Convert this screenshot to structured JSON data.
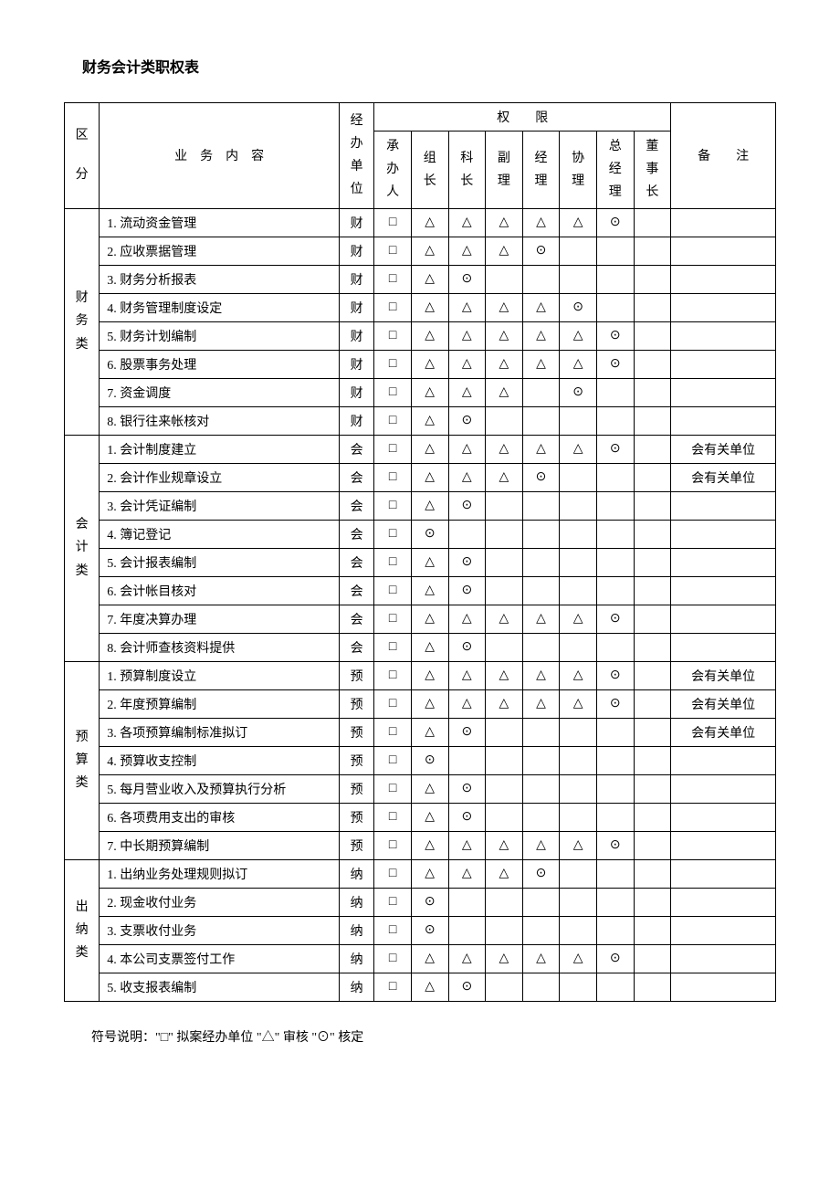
{
  "title": "财务会计类职权表",
  "symbols": {
    "draft": "□",
    "review": "△",
    "approve": "⊙"
  },
  "header": {
    "category": "区分",
    "task": "业　务　内　容",
    "unit": "经办单位",
    "authority": "权　　限",
    "remarks": "备　　注",
    "auth_cols": [
      "承办人",
      "组长",
      "科长",
      "副理",
      "经理",
      "协理",
      "总经理",
      "董事长"
    ]
  },
  "groups": [
    {
      "name": "财务类",
      "rows": [
        {
          "task": "1.  流动资金管理",
          "unit": "财",
          "marks": [
            "□",
            "△",
            "△",
            "△",
            "△",
            "△",
            "⊙",
            ""
          ],
          "remark": ""
        },
        {
          "task": "2.  应收票据管理",
          "unit": "财",
          "marks": [
            "□",
            "△",
            "△",
            "△",
            "⊙",
            "",
            "",
            ""
          ],
          "remark": ""
        },
        {
          "task": "3.  财务分析报表",
          "unit": "财",
          "marks": [
            "□",
            "△",
            "⊙",
            "",
            "",
            "",
            "",
            ""
          ],
          "remark": ""
        },
        {
          "task": "4.  财务管理制度设定",
          "unit": "财",
          "marks": [
            "□",
            "△",
            "△",
            "△",
            "△",
            "⊙",
            "",
            ""
          ],
          "remark": ""
        },
        {
          "task": "5.  财务计划编制",
          "unit": "财",
          "marks": [
            "□",
            "△",
            "△",
            "△",
            "△",
            "△",
            "⊙",
            ""
          ],
          "remark": ""
        },
        {
          "task": "6.  股票事务处理",
          "unit": "财",
          "marks": [
            "□",
            "△",
            "△",
            "△",
            "△",
            "△",
            "⊙",
            ""
          ],
          "remark": ""
        },
        {
          "task": "7.  资金调度",
          "unit": "财",
          "marks": [
            "□",
            "△",
            "△",
            "△",
            "",
            "⊙",
            "",
            ""
          ],
          "remark": ""
        },
        {
          "task": "8.  银行往来帐核对",
          "unit": "财",
          "marks": [
            "□",
            "△",
            "⊙",
            "",
            "",
            "",
            "",
            ""
          ],
          "remark": ""
        }
      ]
    },
    {
      "name": "会计类",
      "rows": [
        {
          "task": "1.  会计制度建立",
          "unit": "会",
          "marks": [
            "□",
            "△",
            "△",
            "△",
            "△",
            "△",
            "⊙",
            ""
          ],
          "remark": "会有关单位"
        },
        {
          "task": "2.  会计作业规章设立",
          "unit": "会",
          "marks": [
            "□",
            "△",
            "△",
            "△",
            "⊙",
            "",
            "",
            ""
          ],
          "remark": "会有关单位"
        },
        {
          "task": "3.  会计凭证编制",
          "unit": "会",
          "marks": [
            "□",
            "△",
            "⊙",
            "",
            "",
            "",
            "",
            ""
          ],
          "remark": ""
        },
        {
          "task": "4.  簿记登记",
          "unit": "会",
          "marks": [
            "□",
            "⊙",
            "",
            "",
            "",
            "",
            "",
            ""
          ],
          "remark": ""
        },
        {
          "task": "5.  会计报表编制",
          "unit": "会",
          "marks": [
            "□",
            "△",
            "⊙",
            "",
            "",
            "",
            "",
            ""
          ],
          "remark": ""
        },
        {
          "task": "6.  会计帐目核对",
          "unit": "会",
          "marks": [
            "□",
            "△",
            "⊙",
            "",
            "",
            "",
            "",
            ""
          ],
          "remark": ""
        },
        {
          "task": "7.  年度决算办理",
          "unit": "会",
          "marks": [
            "□",
            "△",
            "△",
            "△",
            "△",
            "△",
            "⊙",
            ""
          ],
          "remark": ""
        },
        {
          "task": "8.  会计师查核资料提供",
          "unit": "会",
          "marks": [
            "□",
            "△",
            "⊙",
            "",
            "",
            "",
            "",
            ""
          ],
          "remark": ""
        }
      ]
    },
    {
      "name": "预算类",
      "rows": [
        {
          "task": "1.  预算制度设立",
          "unit": "预",
          "marks": [
            "□",
            "△",
            "△",
            "△",
            "△",
            "△",
            "⊙",
            ""
          ],
          "remark": "会有关单位"
        },
        {
          "task": "2.  年度预算编制",
          "unit": "预",
          "marks": [
            "□",
            "△",
            "△",
            "△",
            "△",
            "△",
            "⊙",
            ""
          ],
          "remark": "会有关单位"
        },
        {
          "task": "3.  各项预算编制标准拟订",
          "unit": "预",
          "marks": [
            "□",
            "△",
            "⊙",
            "",
            "",
            "",
            "",
            ""
          ],
          "remark": "会有关单位"
        },
        {
          "task": "4.  预算收支控制",
          "unit": "预",
          "marks": [
            "□",
            "⊙",
            "",
            "",
            "",
            "",
            "",
            ""
          ],
          "remark": ""
        },
        {
          "task": "5.  每月营业收入及预算执行分析",
          "unit": "预",
          "marks": [
            "□",
            "△",
            "⊙",
            "",
            "",
            "",
            "",
            ""
          ],
          "remark": ""
        },
        {
          "task": "6.  各项费用支出的审核",
          "unit": "预",
          "marks": [
            "□",
            "△",
            "⊙",
            "",
            "",
            "",
            "",
            ""
          ],
          "remark": ""
        },
        {
          "task": "7.  中长期预算编制",
          "unit": "预",
          "marks": [
            "□",
            "△",
            "△",
            "△",
            "△",
            "△",
            "⊙",
            ""
          ],
          "remark": ""
        }
      ]
    },
    {
      "name": "出纳类",
      "rows": [
        {
          "task": "1.  出纳业务处理规则拟订",
          "unit": "纳",
          "marks": [
            "□",
            "△",
            "△",
            "△",
            "⊙",
            "",
            "",
            ""
          ],
          "remark": ""
        },
        {
          "task": "2.  现金收付业务",
          "unit": "纳",
          "marks": [
            "□",
            "⊙",
            "",
            "",
            "",
            "",
            "",
            ""
          ],
          "remark": ""
        },
        {
          "task": "3.  支票收付业务",
          "unit": "纳",
          "marks": [
            "□",
            "⊙",
            "",
            "",
            "",
            "",
            "",
            ""
          ],
          "remark": ""
        },
        {
          "task": "4.  本公司支票签付工作",
          "unit": "纳",
          "marks": [
            "□",
            "△",
            "△",
            "△",
            "△",
            "△",
            "⊙",
            ""
          ],
          "remark": ""
        },
        {
          "task": "5.  收支报表编制",
          "unit": "纳",
          "marks": [
            "□",
            "△",
            "⊙",
            "",
            "",
            "",
            "",
            ""
          ],
          "remark": ""
        }
      ]
    }
  ],
  "footnote": "符号说明：\"□\" 拟案经办单位 \"△\" 审核 \"⊙\" 核定"
}
